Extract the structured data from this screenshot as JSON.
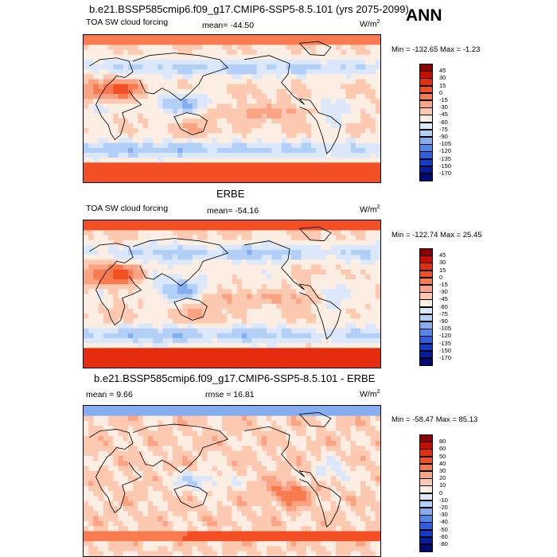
{
  "season": "ANN",
  "panels": [
    {
      "id": "model",
      "title": "b.e21.BSSP585cmip6.f09_g17.CMIP6-SSP5-8.5.101 (yrs 2075-2099)",
      "variable": "TOA SW cloud forcing",
      "left_stat": "",
      "mean_label": "mean= -44.50",
      "units": "W/m",
      "units_sup": "2",
      "minmax": "Min = -132.65 Max =  -1.23",
      "levels": [
        "45",
        "30",
        "15",
        "0",
        "-15",
        "-30",
        "-45",
        "-60",
        "-75",
        "-90",
        "-105",
        "-120",
        "-135",
        "-150",
        "-170"
      ],
      "colors": [
        "#8b0000",
        "#c40f05",
        "#e52d10",
        "#f34f25",
        "#f87a4f",
        "#fba383",
        "#fdc9b0",
        "#fdeee4",
        "#dbe8fb",
        "#b2d0f7",
        "#84aef0",
        "#5487e8",
        "#2f5fe0",
        "#123acb",
        "#051ca0",
        "#000b73"
      ],
      "field": "model"
    },
    {
      "id": "obs",
      "title": "ERBE",
      "variable": "TOA SW cloud forcing",
      "left_stat": "",
      "mean_label": "mean= -54.16",
      "units": "W/m",
      "units_sup": "2",
      "minmax": "Min = -122.74 Max =  25.45",
      "levels": [
        "45",
        "30",
        "15",
        "0",
        "-15",
        "-30",
        "-45",
        "-60",
        "-75",
        "-90",
        "-105",
        "-120",
        "-135",
        "-150",
        "-170"
      ],
      "colors": [
        "#8b0000",
        "#c40f05",
        "#e52d10",
        "#f34f25",
        "#f87a4f",
        "#fba383",
        "#fdc9b0",
        "#fdeee4",
        "#dbe8fb",
        "#b2d0f7",
        "#84aef0",
        "#5487e8",
        "#2f5fe0",
        "#123acb",
        "#051ca0",
        "#000b73"
      ],
      "field": "obs"
    },
    {
      "id": "diff",
      "title": "b.e21.BSSP585cmip6.f09_g17.CMIP6-SSP5-8.5.101 - ERBE",
      "variable": "",
      "left_stat": "mean =   9.66",
      "mean_label": "rmse =  16.81",
      "units": "W/m",
      "units_sup": "2",
      "minmax": "Min = -58.47 Max =  85.13",
      "levels": [
        "80",
        "60",
        "50",
        "40",
        "30",
        "20",
        "10",
        "0",
        "-10",
        "-20",
        "-30",
        "-40",
        "-50",
        "-60",
        "-80"
      ],
      "colors": [
        "#8b0000",
        "#c40f05",
        "#e52d10",
        "#f34f25",
        "#f87a4f",
        "#fba383",
        "#fdc9b0",
        "#fdeee4",
        "#dbe8fb",
        "#b2d0f7",
        "#84aef0",
        "#5487e8",
        "#2f5fe0",
        "#123acb",
        "#051ca0",
        "#000b73"
      ],
      "field": "diff"
    }
  ]
}
